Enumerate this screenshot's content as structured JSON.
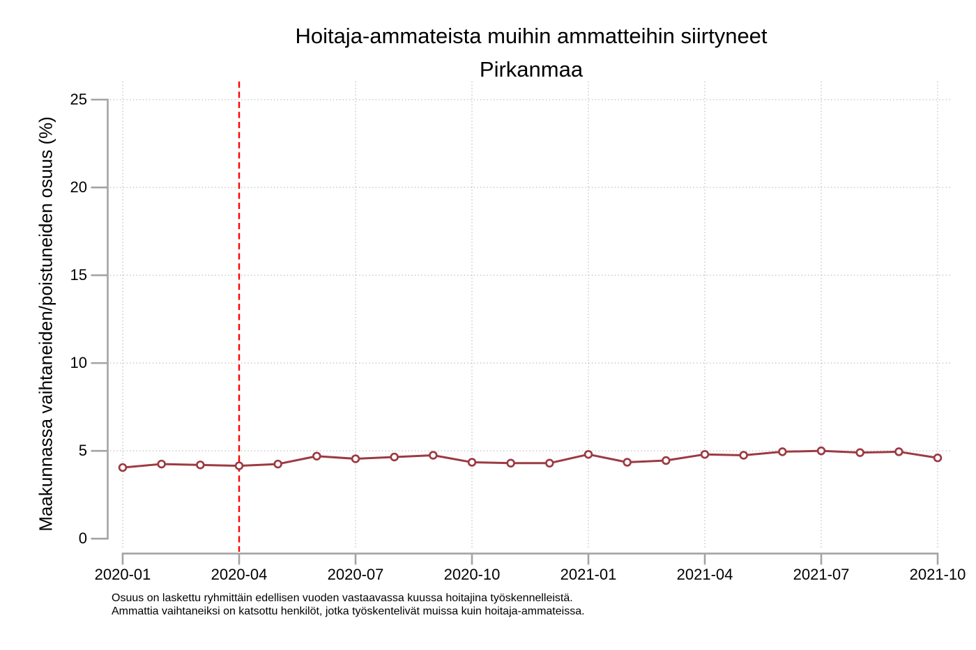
{
  "chart_data": {
    "type": "line",
    "title": "Hoitaja-ammateista muihin ammatteihin siirtyneet",
    "subtitle": "Pirkanmaa",
    "ylabel": "Maakunnassa vaihtaneiden/poistuneiden osuus (%)",
    "xlabel": "",
    "x": [
      "2020-01",
      "2020-02",
      "2020-03",
      "2020-04",
      "2020-05",
      "2020-06",
      "2020-07",
      "2020-08",
      "2020-09",
      "2020-10",
      "2020-11",
      "2020-12",
      "2021-01",
      "2021-02",
      "2021-03",
      "2021-04",
      "2021-05",
      "2021-06",
      "2021-07",
      "2021-08",
      "2021-09",
      "2021-10"
    ],
    "series": [
      {
        "name": "Hoitaja-ammateista muihin ammatteihin siirtyneet, Pirkanmaa",
        "values": [
          4.05,
          4.25,
          4.2,
          4.15,
          4.25,
          4.7,
          4.55,
          4.65,
          4.75,
          4.35,
          4.3,
          4.3,
          4.8,
          4.35,
          4.45,
          4.8,
          4.75,
          4.95,
          5.0,
          4.9,
          4.95,
          4.6
        ]
      }
    ],
    "x_tick_labels": [
      "2020-01",
      "2020-04",
      "2020-07",
      "2020-10",
      "2021-01",
      "2021-04",
      "2021-07",
      "2021-10"
    ],
    "y_ticks": [
      0,
      5,
      10,
      15,
      20,
      25
    ],
    "ylim": [
      0,
      25
    ],
    "grid": true,
    "legend": "none",
    "marker": "hollow-circle",
    "vline": {
      "x": "2020-04",
      "style": "dashed",
      "color": "#ff0000"
    },
    "colors": {
      "series": "#9c3a42",
      "marker_fill": "#ffffff",
      "vline": "#ff0000",
      "axis": "#a3a3a3",
      "gridline": "#c2c2c2",
      "text": "#000000",
      "background": "#ffffff"
    },
    "notes": [
      "Osuus on laskettu ryhmittäin edellisen vuoden vastaavassa kuussa hoitajina työskennelleistä.",
      "Ammattia vaihtaneiksi on katsottu henkilöt, jotka työskentelivät muissa kuin hoitaja-ammateissa."
    ]
  }
}
